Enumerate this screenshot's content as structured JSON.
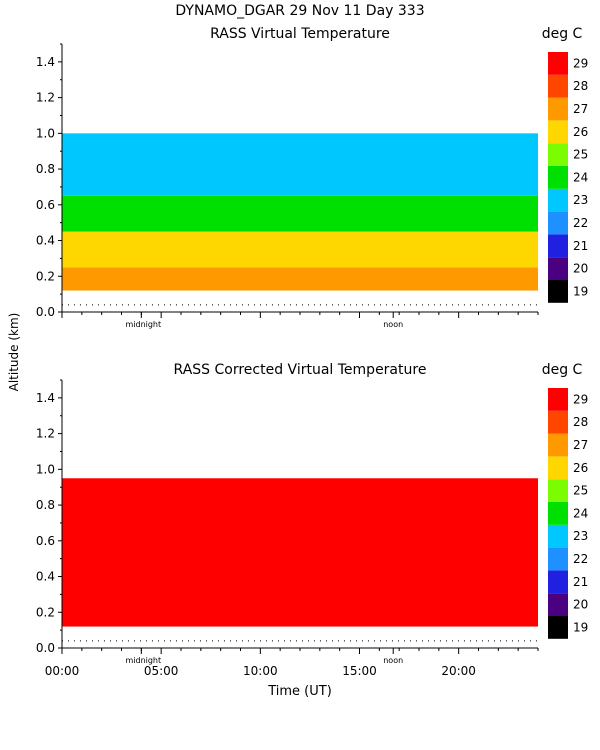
{
  "header": {
    "title_line": "DYNAMO_DGAR  29 Nov 11 Day 333"
  },
  "shared": {
    "y_axis_label": "Altitude (km)",
    "x_axis_label": "Time (UT)",
    "markers": [
      "midnight",
      "noon"
    ],
    "colorbar_unit": "deg C"
  },
  "chart_data": [
    {
      "type": "heatmap",
      "title": "RASS Virtual Temperature",
      "xlabel": "",
      "ylabel": "Altitude (km)",
      "xlim_hours": [
        0,
        24
      ],
      "ylim_km": [
        0,
        1.5
      ],
      "y_ticks": [
        "0.0",
        "0.2",
        "0.4",
        "0.6",
        "0.8",
        "1.0",
        "1.2",
        "1.4"
      ],
      "x_ticks": [],
      "colorbar": {
        "unit": "deg C",
        "levels": [
          "19",
          "20",
          "21",
          "22",
          "23",
          "24",
          "25",
          "26",
          "27",
          "28",
          "29"
        ],
        "colors": [
          "#000000",
          "#4b0082",
          "#2020e0",
          "#1e90ff",
          "#00c8ff",
          "#00e000",
          "#7cfc00",
          "#ffd700",
          "#ff9900",
          "#ff4500",
          "#ff0000"
        ]
      },
      "approx_layers": [
        {
          "alt_km": [
            0.12,
            0.25
          ],
          "deg_c": 27
        },
        {
          "alt_km": [
            0.25,
            0.45
          ],
          "deg_c": 26
        },
        {
          "alt_km": [
            0.45,
            0.65
          ],
          "deg_c": 24
        },
        {
          "alt_km": [
            0.65,
            1.0
          ],
          "deg_c": 23
        }
      ]
    },
    {
      "type": "heatmap",
      "title": "RASS Corrected Virtual Temperature",
      "xlabel": "Time (UT)",
      "ylabel": "Altitude (km)",
      "xlim_hours": [
        0,
        24
      ],
      "ylim_km": [
        0,
        1.5
      ],
      "y_ticks": [
        "0.0",
        "0.2",
        "0.4",
        "0.6",
        "0.8",
        "1.0",
        "1.2",
        "1.4"
      ],
      "x_ticks": [
        "00:00",
        "05:00",
        "10:00",
        "15:00",
        "20:00"
      ],
      "colorbar": {
        "unit": "deg C",
        "levels": [
          "19",
          "20",
          "21",
          "22",
          "23",
          "24",
          "25",
          "26",
          "27",
          "28",
          "29"
        ],
        "colors": [
          "#000000",
          "#4b0082",
          "#2020e0",
          "#1e90ff",
          "#00c8ff",
          "#00e000",
          "#7cfc00",
          "#ffd700",
          "#ff9900",
          "#ff4500",
          "#ff0000"
        ]
      },
      "approx_layers": [
        {
          "alt_km": [
            0.12,
            0.95
          ],
          "deg_c": 29
        }
      ]
    }
  ]
}
